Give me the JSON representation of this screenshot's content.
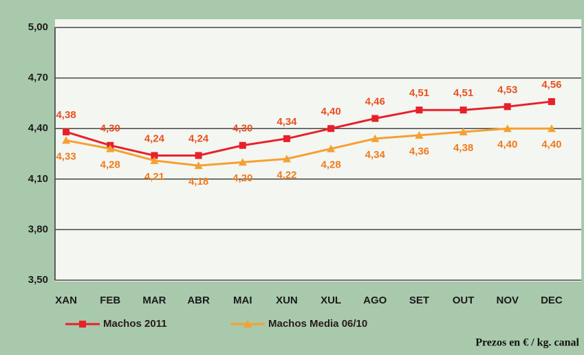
{
  "chart_data": {
    "type": "line",
    "categories": [
      "XAN",
      "FEB",
      "MAR",
      "ABR",
      "MAI",
      "XUN",
      "XUL",
      "AGO",
      "SET",
      "OUT",
      "NOV",
      "DEC"
    ],
    "series": [
      {
        "name": "Machos 2011",
        "color": "#e8202a",
        "values": [
          4.38,
          4.3,
          4.24,
          4.24,
          4.3,
          4.34,
          4.4,
          4.46,
          4.51,
          4.51,
          4.53,
          4.56
        ],
        "value_labels": [
          "4,38",
          "4,30",
          "4,24",
          "4,24",
          "4,30",
          "4,34",
          "4,40",
          "4,46",
          "4,51",
          "4,51",
          "4,53",
          "4,56"
        ]
      },
      {
        "name": "Machos Media 06/10",
        "color": "#f5a030",
        "values": [
          4.33,
          4.28,
          4.21,
          4.18,
          4.2,
          4.22,
          4.28,
          4.34,
          4.36,
          4.38,
          4.4,
          4.4
        ],
        "value_labels": [
          "4,33",
          "4,28",
          "4,21",
          "4,18",
          "4,20",
          "4,22",
          "4,28",
          "4,34",
          "4,36",
          "4,38",
          "4,40",
          "4,40"
        ]
      }
    ],
    "ylim": [
      3.5,
      5.0
    ],
    "yticks": [
      {
        "value": 3.5,
        "label": "3,50"
      },
      {
        "value": 3.8,
        "label": "3,80"
      },
      {
        "value": 4.1,
        "label": "4,10"
      },
      {
        "value": 4.4,
        "label": "4,40"
      },
      {
        "value": 4.7,
        "label": "4,70"
      },
      {
        "value": 5.0,
        "label": "5,00"
      }
    ],
    "grid": true,
    "footnote": "Prezos en  € / kg. canal"
  }
}
